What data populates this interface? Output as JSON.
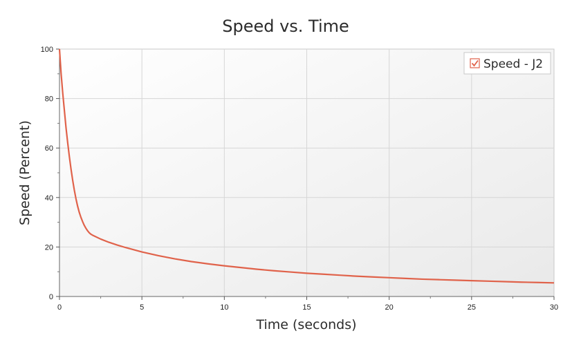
{
  "chart_data": {
    "type": "line",
    "title": "Speed vs. Time",
    "xlabel": "Time (seconds)",
    "ylabel": "Speed (Percent)",
    "xlim": [
      0,
      30
    ],
    "ylim": [
      0,
      100
    ],
    "xticks": [
      0,
      5,
      10,
      15,
      20,
      25,
      30
    ],
    "yticks": [
      0,
      20,
      40,
      60,
      80,
      100
    ],
    "grid": true,
    "legend_position": "top-right",
    "series": [
      {
        "name": "Speed - J2",
        "color": "#e0624a",
        "legend_checked": true,
        "x": [
          0,
          0.05,
          0.1,
          0.2,
          0.3,
          0.4,
          0.5,
          0.6,
          0.7,
          0.8,
          0.9,
          1.0,
          1.1,
          1.2,
          1.3,
          1.4,
          1.5,
          1.6,
          1.7,
          1.8,
          1.9,
          2.0,
          2.5,
          3,
          3.5,
          4,
          5,
          6,
          7,
          8,
          9,
          10,
          11,
          12,
          13,
          14,
          15,
          16,
          17,
          18,
          19,
          20,
          21,
          22,
          23,
          24,
          25,
          26,
          27,
          28,
          29,
          30
        ],
        "y": [
          100,
          95,
          90,
          82,
          75,
          68,
          62,
          56.5,
          51.5,
          47,
          43,
          39.5,
          36.5,
          34,
          32,
          30.3,
          28.8,
          27.6,
          26.6,
          25.8,
          25.2,
          24.8,
          23.2,
          21.9,
          20.8,
          19.8,
          18.0,
          16.5,
          15.2,
          14.1,
          13.2,
          12.4,
          11.7,
          11.0,
          10.4,
          9.9,
          9.4,
          9.0,
          8.6,
          8.2,
          7.9,
          7.6,
          7.3,
          7.0,
          6.8,
          6.6,
          6.4,
          6.2,
          6.0,
          5.8,
          5.65,
          5.5
        ]
      }
    ]
  }
}
